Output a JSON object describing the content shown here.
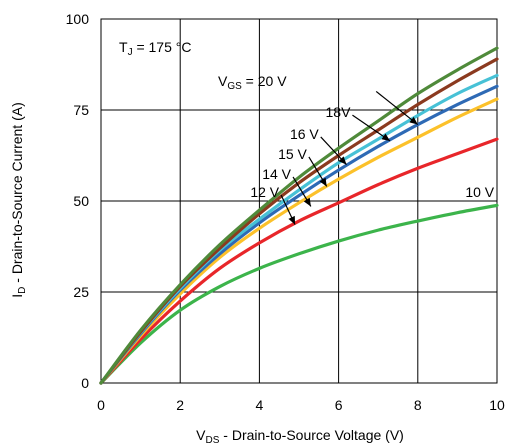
{
  "chart_data": {
    "type": "line",
    "title": "",
    "xlabel": {
      "main": "V",
      "sub": "DS",
      "rest": " - Drain-to-Source Voltage (V)"
    },
    "ylabel": {
      "main": "I",
      "sub": "D",
      "rest": " - Drain-to-Source Current (A)"
    },
    "xlim": [
      0,
      10
    ],
    "ylim": [
      0,
      100
    ],
    "xticks": [
      0,
      2,
      4,
      6,
      8,
      10
    ],
    "yticks": [
      0,
      25,
      50,
      75,
      100
    ],
    "grid": true,
    "annotation": {
      "main": "T",
      "sub": "J",
      "rest": " = 175 °C"
    },
    "x": [
      0,
      1,
      2,
      3,
      4,
      5,
      6,
      7,
      8,
      9,
      10
    ],
    "series": [
      {
        "label": "10 V",
        "color": "#3cb44b",
        "values": [
          0,
          11,
          20,
          26.5,
          31.5,
          35.5,
          39,
          42,
          44.5,
          46.8,
          48.8
        ]
      },
      {
        "label": "12 V",
        "color": "#e8262a",
        "values": [
          0,
          12,
          22.5,
          31.5,
          38.5,
          44.5,
          49.5,
          54.5,
          59,
          63,
          67
        ]
      },
      {
        "label": "14 V",
        "color": "#fcc12a",
        "values": [
          0,
          13,
          24.5,
          34.5,
          42.5,
          49.5,
          56,
          62,
          67.5,
          73,
          78
        ]
      },
      {
        "label": "15 V",
        "color": "#2e6ab5",
        "values": [
          0,
          13.5,
          25.5,
          35.5,
          44,
          51.5,
          58.5,
          65,
          71,
          76.5,
          81.5
        ]
      },
      {
        "label": "16 V",
        "color": "#47c1d6",
        "values": [
          0,
          13.8,
          26,
          36.5,
          45,
          53,
          60.5,
          67,
          73.5,
          79.5,
          84.5
        ]
      },
      {
        "label": "18V",
        "color": "#8b3a1f",
        "values": [
          0,
          14,
          26.5,
          37,
          46.5,
          55,
          62.5,
          69.5,
          76.5,
          83,
          89
        ]
      },
      {
        "label_main": "V",
        "label_sub": "GS",
        "label_rest": " = 20 V",
        "color": "#4f8a3a",
        "values": [
          0,
          14.5,
          27,
          38,
          47.5,
          56.5,
          64.5,
          72,
          79.5,
          86,
          92
        ]
      }
    ],
    "curve_labels": [
      {
        "text": "12 V",
        "at": [
          4.6,
          50.5
        ],
        "arrow_to": [
          4.9,
          43.5
        ]
      },
      {
        "text": "14 V",
        "at": [
          4.9,
          55.5
        ],
        "arrow_to": [
          5.3,
          48.5
        ]
      },
      {
        "text": "15 V",
        "at": [
          5.3,
          61
        ],
        "arrow_to": [
          5.7,
          54
        ]
      },
      {
        "text": "16 V",
        "at": [
          5.6,
          66.5
        ],
        "arrow_to": [
          6.2,
          60
        ]
      },
      {
        "text": "18V",
        "at": [
          6.4,
          72.5
        ],
        "arrow_to": [
          7.3,
          66.5
        ]
      },
      {
        "text": "20V",
        "at": [
          7.0,
          79
        ],
        "arrow_to": [
          8.0,
          71
        ]
      },
      {
        "text": "10 V",
        "at": [
          9.2,
          50.5
        ],
        "arrow_to": null
      }
    ]
  }
}
